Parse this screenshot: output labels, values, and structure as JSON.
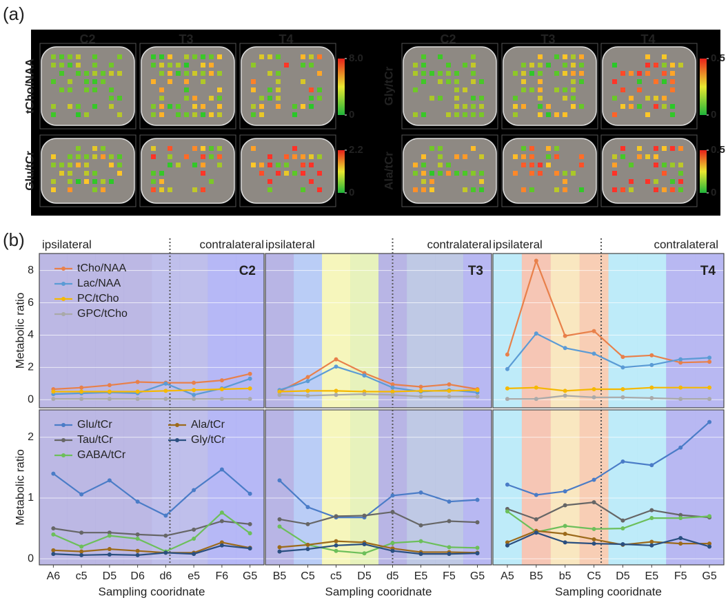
{
  "panel_a": {
    "label": "(a)",
    "columns": [
      "C2",
      "T3",
      "T4",
      "C2",
      "T3",
      "T4"
    ],
    "maps": [
      {
        "label": "tCho/NAA",
        "cbar_ticks": [
          {
            "value": 8,
            "label": "8.0"
          },
          0
        ]
      },
      {
        "label": "Glu/tCr",
        "cbar_ticks": [
          2.2,
          0
        ]
      },
      {
        "label": "Gly/tCr",
        "cbar_ticks": [
          0.5,
          0
        ]
      },
      {
        "label": "Ala/tCr",
        "cbar_ticks": [
          0.5,
          0
        ]
      }
    ]
  },
  "panel_b": {
    "label": "(b)"
  },
  "chart_data": [
    {
      "type": "line",
      "panel_title": "C2",
      "side_labels": [
        "ipsilateral",
        "contralateral"
      ],
      "ylabel": "Metabolic ratio",
      "ylim": [
        -0.5,
        9.05
      ],
      "yticks": [
        0,
        2,
        4,
        6,
        8
      ],
      "show_tick_labels": true,
      "grid": true,
      "legend": "upper left",
      "legend_columns": 1,
      "bands": [
        "#b0abdf",
        "#b0abdf",
        "#b0abdf",
        "#b0abdf",
        "#b4b4e8",
        "#b4b4e8",
        "#a9abf5",
        "#a9abf5"
      ],
      "series": [
        {
          "name": "tCho/NAA",
          "color": "#e8804a",
          "values": [
            0.65,
            0.75,
            0.9,
            1.1,
            1.05,
            1.05,
            1.2,
            1.6
          ]
        },
        {
          "name": "Lac/NAA",
          "color": "#5b9bd5",
          "values": [
            0.35,
            0.4,
            0.45,
            0.4,
            1.0,
            0.3,
            0.7,
            1.3
          ]
        },
        {
          "name": "PC/tCho",
          "color": "#f5b800",
          "values": [
            0.5,
            0.5,
            0.5,
            0.5,
            0.55,
            0.6,
            0.65,
            0.7
          ]
        },
        {
          "name": "GPC/tCho",
          "color": "#a9a9a9",
          "values": [
            0.05,
            0.05,
            0.05,
            0.05,
            0.05,
            0.05,
            0.05,
            0.05
          ]
        }
      ]
    },
    {
      "type": "line",
      "panel_title": "T3",
      "side_labels": [
        "ipsilateral",
        "contralateral"
      ],
      "ylim": [
        -0.5,
        9.05
      ],
      "yticks": [
        0,
        2,
        4,
        6,
        8
      ],
      "show_tick_labels": false,
      "grid": true,
      "bands": [
        "#aca8e0",
        "#aec4f4",
        "#f5f4b0",
        "#e3f0b0",
        "#aca8e0",
        "#b4c0e0",
        "#b4c0e0",
        "#acacf0"
      ],
      "series": [
        {
          "color": "#e8804a",
          "values": [
            0.5,
            1.4,
            2.5,
            1.65,
            0.95,
            0.8,
            0.95,
            0.65
          ]
        },
        {
          "color": "#5b9bd5",
          "values": [
            0.6,
            1.15,
            2.05,
            1.5,
            0.75,
            0.5,
            0.6,
            0.45
          ]
        },
        {
          "color": "#f5b800",
          "values": [
            0.5,
            0.55,
            0.55,
            0.5,
            0.5,
            0.55,
            0.55,
            0.6
          ]
        },
        {
          "color": "#a9a9a9",
          "values": [
            0.3,
            0.25,
            0.3,
            0.35,
            0.3,
            0.2,
            0.2,
            0.2
          ]
        }
      ]
    },
    {
      "type": "line",
      "panel_title": "T4",
      "side_labels": [
        "ipsilateral",
        "contralateral"
      ],
      "ylim": [
        -0.5,
        9.05
      ],
      "yticks": [
        0,
        2,
        4,
        6,
        8
      ],
      "show_tick_labels": false,
      "grid": true,
      "bands": [
        "#b3e7f8",
        "#f5bca8",
        "#f8e3b5",
        "#f7c5a8",
        "#b3e7f8",
        "#b3e7f8",
        "#acacf0",
        "#acacf0"
      ],
      "series": [
        {
          "color": "#e8804a",
          "values": [
            2.8,
            8.6,
            3.95,
            4.25,
            2.65,
            2.75,
            2.3,
            2.35
          ]
        },
        {
          "color": "#5b9bd5",
          "values": [
            1.9,
            4.1,
            3.2,
            2.85,
            2.0,
            2.15,
            2.5,
            2.6
          ]
        },
        {
          "color": "#f5b800",
          "values": [
            0.7,
            0.75,
            0.55,
            0.65,
            0.65,
            0.75,
            0.75,
            0.75
          ]
        },
        {
          "color": "#a9a9a9",
          "values": [
            0.05,
            0.05,
            0.25,
            0.15,
            0.15,
            0.1,
            0.05,
            0.05
          ]
        }
      ]
    },
    {
      "type": "line",
      "ylabel": "Metabolic ratio",
      "xlabel": "Sampling cooridnate",
      "categories": [
        "A6",
        "c5",
        "D5",
        "D6",
        "d6",
        "e5",
        "F6",
        "G5"
      ],
      "ylim": [
        -0.1,
        2.45
      ],
      "yticks": [
        0,
        1,
        2
      ],
      "show_tick_labels": true,
      "grid": true,
      "legend": "upper left",
      "legend_columns": 2,
      "bands": [
        "#b0abdf",
        "#b0abdf",
        "#b0abdf",
        "#b0abdf",
        "#b4b4e8",
        "#b4b4e8",
        "#a9abf5",
        "#a9abf5"
      ],
      "series": [
        {
          "name": "Glu/tCr",
          "color": "#4a7cc7",
          "values": [
            1.4,
            1.06,
            1.29,
            0.94,
            0.71,
            1.13,
            1.47,
            1.07
          ]
        },
        {
          "name": "Tau/tCr",
          "color": "#666666",
          "values": [
            0.5,
            0.43,
            0.43,
            0.4,
            0.38,
            0.48,
            0.62,
            0.57
          ]
        },
        {
          "name": "GABA/tCr",
          "color": "#6cbf5a",
          "values": [
            0.4,
            0.2,
            0.38,
            0.33,
            0.12,
            0.33,
            0.76,
            0.42
          ]
        },
        {
          "name": "Ala/tCr",
          "color": "#9c6a1a",
          "values": [
            0.14,
            0.12,
            0.16,
            0.13,
            0.1,
            0.1,
            0.27,
            0.18
          ]
        },
        {
          "name": "Gly/tCr",
          "color": "#2a4f80",
          "values": [
            0.08,
            0.06,
            0.07,
            0.06,
            0.1,
            0.08,
            0.22,
            0.17
          ]
        }
      ]
    },
    {
      "type": "line",
      "xlabel": "Sampling cooridnate",
      "categories": [
        "B5",
        "C5",
        "c5",
        "D5",
        "d5",
        "E5",
        "F5",
        "G5"
      ],
      "ylim": [
        -0.1,
        2.45
      ],
      "yticks": [
        0,
        1,
        2
      ],
      "show_tick_labels": false,
      "grid": true,
      "bands": [
        "#aca8e0",
        "#aec4f4",
        "#f5f4b0",
        "#e3f0b0",
        "#aca8e0",
        "#b4c0e0",
        "#b4c0e0",
        "#acacf0"
      ],
      "series": [
        {
          "color": "#4a7cc7",
          "values": [
            1.29,
            0.85,
            0.68,
            0.68,
            1.04,
            1.09,
            0.94,
            0.97
          ]
        },
        {
          "color": "#666666",
          "values": [
            0.65,
            0.57,
            0.7,
            0.71,
            0.77,
            0.55,
            0.62,
            0.6
          ]
        },
        {
          "color": "#6cbf5a",
          "values": [
            0.53,
            0.23,
            0.13,
            0.09,
            0.26,
            0.29,
            0.19,
            0.18
          ]
        },
        {
          "color": "#9c6a1a",
          "values": [
            0.19,
            0.23,
            0.29,
            0.27,
            0.17,
            0.11,
            0.11,
            0.1
          ]
        },
        {
          "color": "#2a4f80",
          "values": [
            0.12,
            0.16,
            0.22,
            0.24,
            0.13,
            0.08,
            0.08,
            0.09
          ]
        }
      ]
    },
    {
      "type": "line",
      "xlabel": "Sampling cooridnate",
      "categories": [
        "A5",
        "B5",
        "b5",
        "C5",
        "D5",
        "E5",
        "F5",
        "G5"
      ],
      "ylim": [
        -0.1,
        2.45
      ],
      "yticks": [
        0,
        1,
        2
      ],
      "show_tick_labels": false,
      "grid": true,
      "bands": [
        "#b3e7f8",
        "#f5bca8",
        "#f8e3b5",
        "#f7c5a8",
        "#b3e7f8",
        "#b3e7f8",
        "#acacf0",
        "#acacf0"
      ],
      "series": [
        {
          "color": "#4a7cc7",
          "values": [
            1.22,
            1.05,
            1.11,
            1.3,
            1.6,
            1.54,
            1.83,
            2.25
          ]
        },
        {
          "color": "#666666",
          "values": [
            0.82,
            0.65,
            0.88,
            0.93,
            0.63,
            0.8,
            0.72,
            0.68
          ]
        },
        {
          "color": "#6cbf5a",
          "values": [
            0.78,
            0.44,
            0.54,
            0.49,
            0.5,
            0.67,
            0.67,
            0.7
          ]
        },
        {
          "color": "#9c6a1a",
          "values": [
            0.27,
            0.46,
            0.41,
            0.32,
            0.23,
            0.28,
            0.25,
            0.25
          ]
        },
        {
          "color": "#2a4f80",
          "values": [
            0.22,
            0.43,
            0.27,
            0.25,
            0.24,
            0.22,
            0.34,
            0.2
          ]
        }
      ]
    }
  ]
}
